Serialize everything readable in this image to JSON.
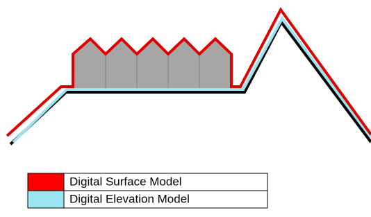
{
  "legend": [
    {
      "label": "Digital Surface Model"
    },
    {
      "label": "Digital Elevation Model"
    }
  ]
}
